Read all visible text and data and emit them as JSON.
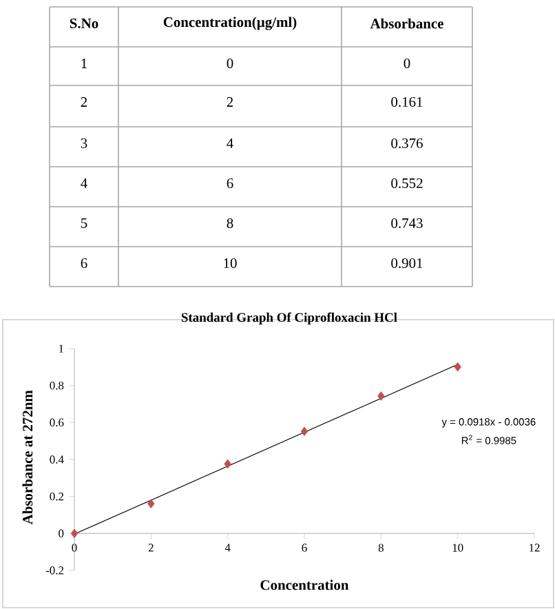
{
  "chart_data": {
    "type": "scatter",
    "title": "Standard Graph Of Ciprofloxacin HCl",
    "xlabel": "Concentration",
    "ylabel": "Absorbance at 272nm",
    "series": [
      {
        "color": "#c0504d",
        "marker": "diamond",
        "x": [
          0,
          2,
          4,
          6,
          8,
          10
        ],
        "values": [
          0,
          0.161,
          0.376,
          0.552,
          0.743,
          0.901
        ]
      },
      {
        "type": "line",
        "marker": "none",
        "color": "#000000",
        "x": [
          0,
          10
        ],
        "values": [
          -0.0036,
          0.9144
        ]
      }
    ],
    "xlim": [
      0,
      12
    ],
    "xticks": [
      0,
      2,
      4,
      6,
      8,
      10,
      12
    ],
    "ylim": [
      -0.2,
      1
    ],
    "yticks": [
      -0.2,
      0,
      0.2,
      0.4,
      0.6,
      0.8,
      1
    ],
    "annotations": [
      "S.No",
      "Concentration(µg/ml)",
      "Absorbance",
      "1",
      "0",
      "0",
      "2",
      "2",
      "0.161",
      "3",
      "4",
      "0.376",
      "4",
      "6",
      "0.552",
      "5",
      "8",
      "0.743",
      "6",
      "10",
      "0.901",
      "y = 0.0918x - 0.0036",
      "R$^{2}$ = 0.9985"
    ]
  }
}
